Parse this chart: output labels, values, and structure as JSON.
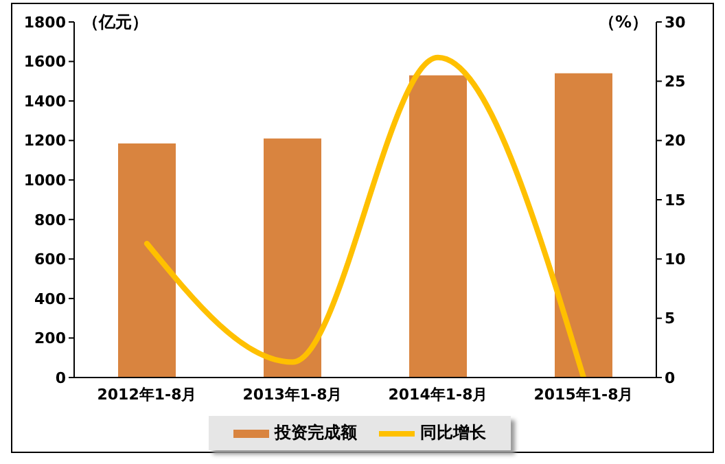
{
  "chart_data": {
    "type": "bar",
    "categories": [
      "2012年1-8月",
      "2013年1-8月",
      "2014年1-8月",
      "2015年1-8月"
    ],
    "ylabel": "（亿元）",
    "y2label": "（%）",
    "series": [
      {
        "name": "投资完成额",
        "color": "#d9843f",
        "values": [
          1185,
          1210,
          1530,
          1540
        ]
      },
      {
        "name": "同比增长",
        "type": "line",
        "axis": "y2",
        "color": "#ffc000",
        "values": [
          11.3,
          1.3,
          27,
          0
        ]
      }
    ],
    "ylim": [
      0,
      1800
    ],
    "yticks": [
      0,
      200,
      400,
      600,
      800,
      1000,
      1200,
      1400,
      1600,
      1800
    ],
    "y2lim": [
      0,
      30
    ],
    "y2ticks": [
      0,
      5,
      10,
      15,
      20,
      25,
      30
    ],
    "marker": "none",
    "grid": false,
    "legend": "bottom"
  }
}
